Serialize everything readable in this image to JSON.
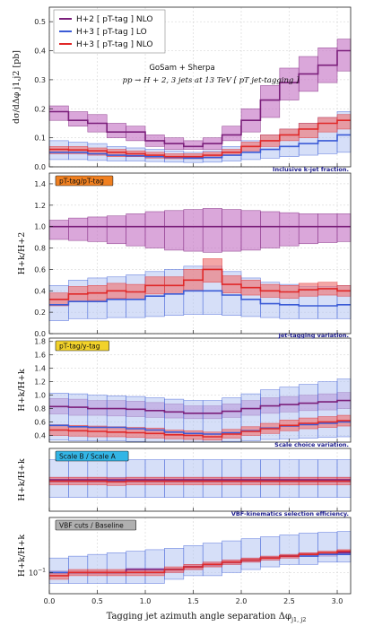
{
  "figure": {
    "xlabel": "Tagging jet azimuth angle separation  Δφ",
    "xlabel_sub": "j1, j2",
    "xticks": [
      "0.0",
      "0.5",
      "1.0",
      "1.5",
      "2.0",
      "2.5",
      "3.0"
    ],
    "legend": [
      "H+2 [ pT-tag ] NLO",
      "H+3 [ pT-tag ] LO",
      "H+3 [ pT-tag ] NLO"
    ],
    "legend_colors": [
      "#7b1f7b",
      "#3b5bd6",
      "#e02828"
    ],
    "band_colors": [
      "#c678c6",
      "#b5c5f2",
      "#ee7777"
    ],
    "annotation_line1": "GoSam + Sherpa",
    "annotation_line2": "pp → H + 2, 3 jets at 13 TeV  [ pT jet-tagging ]"
  },
  "chart_data": [
    {
      "type": "line",
      "ylabel": "dσ/dΔφ j1,j2 [pb]",
      "ylim": [
        0,
        0.55
      ],
      "yticks": [
        "0.0",
        "0.1",
        "0.2",
        "0.3",
        "0.4",
        "0.5"
      ],
      "x_edges": [
        0.0,
        0.2,
        0.4,
        0.6,
        0.8,
        1.0,
        1.2,
        1.4,
        1.6,
        1.8,
        2.0,
        2.2,
        2.4,
        2.6,
        2.8,
        3.0,
        3.14
      ],
      "series": [
        {
          "name": "H+2 [ pT-tag ] NLO",
          "values": [
            0.19,
            0.16,
            0.15,
            0.12,
            0.12,
            0.09,
            0.08,
            0.07,
            0.08,
            0.11,
            0.16,
            0.23,
            0.29,
            0.32,
            0.35,
            0.4
          ],
          "lo": [
            0.16,
            0.14,
            0.12,
            0.1,
            0.09,
            0.07,
            0.06,
            0.06,
            0.06,
            0.09,
            0.12,
            0.17,
            0.23,
            0.26,
            0.29,
            0.33
          ],
          "hi": [
            0.21,
            0.19,
            0.18,
            0.15,
            0.14,
            0.11,
            0.1,
            0.09,
            0.1,
            0.14,
            0.2,
            0.28,
            0.34,
            0.38,
            0.41,
            0.44
          ]
        },
        {
          "name": "H+3 [ pT-tag ] LO",
          "values": [
            0.05,
            0.05,
            0.045,
            0.04,
            0.038,
            0.035,
            0.032,
            0.03,
            0.032,
            0.04,
            0.05,
            0.06,
            0.07,
            0.08,
            0.09,
            0.11
          ],
          "lo": [
            0.025,
            0.025,
            0.022,
            0.02,
            0.02,
            0.018,
            0.016,
            0.015,
            0.016,
            0.02,
            0.025,
            0.03,
            0.035,
            0.04,
            0.045,
            0.05
          ],
          "hi": [
            0.09,
            0.085,
            0.08,
            0.07,
            0.065,
            0.06,
            0.055,
            0.05,
            0.055,
            0.07,
            0.09,
            0.11,
            0.13,
            0.15,
            0.17,
            0.19
          ]
        },
        {
          "name": "H+3 [ pT-tag ] NLO",
          "values": [
            0.06,
            0.058,
            0.055,
            0.05,
            0.045,
            0.04,
            0.035,
            0.035,
            0.04,
            0.05,
            0.07,
            0.09,
            0.11,
            0.13,
            0.15,
            0.16
          ],
          "lo": [
            0.045,
            0.045,
            0.04,
            0.035,
            0.035,
            0.03,
            0.028,
            0.028,
            0.03,
            0.04,
            0.055,
            0.07,
            0.09,
            0.1,
            0.12,
            0.13
          ],
          "hi": [
            0.07,
            0.07,
            0.065,
            0.06,
            0.055,
            0.05,
            0.045,
            0.045,
            0.05,
            0.06,
            0.085,
            0.11,
            0.13,
            0.15,
            0.17,
            0.18
          ]
        }
      ]
    },
    {
      "type": "line",
      "ylabel": "H+k/H+2",
      "ylim": [
        0,
        1.5
      ],
      "yticks": [
        "0.0",
        "0.2",
        "0.4",
        "0.6",
        "0.8",
        "1.0",
        "1.2",
        "1.4"
      ],
      "tag": "pT-tag/pT-tag",
      "tag_color": "#f08020",
      "note": "Inclusive k-jet fraction.",
      "x_edges": [
        0.0,
        0.2,
        0.4,
        0.6,
        0.8,
        1.0,
        1.2,
        1.4,
        1.6,
        1.8,
        2.0,
        2.2,
        2.4,
        2.6,
        2.8,
        3.0,
        3.14
      ],
      "series": [
        {
          "name": "H+2 [ pT-tag ] NLO",
          "values": [
            1,
            1,
            1,
            1,
            1,
            1,
            1,
            1,
            1,
            1,
            1,
            1,
            1,
            1,
            1,
            1
          ],
          "lo": [
            0.88,
            0.87,
            0.86,
            0.84,
            0.82,
            0.8,
            0.78,
            0.77,
            0.76,
            0.77,
            0.78,
            0.8,
            0.82,
            0.84,
            0.85,
            0.86
          ],
          "hi": [
            1.06,
            1.08,
            1.09,
            1.1,
            1.12,
            1.14,
            1.15,
            1.16,
            1.17,
            1.16,
            1.15,
            1.14,
            1.13,
            1.12,
            1.12,
            1.12
          ]
        },
        {
          "name": "H+3 [ pT-tag ] LO",
          "values": [
            0.27,
            0.3,
            0.3,
            0.32,
            0.32,
            0.35,
            0.37,
            0.4,
            0.4,
            0.36,
            0.32,
            0.28,
            0.27,
            0.26,
            0.26,
            0.27
          ],
          "lo": [
            0.12,
            0.14,
            0.14,
            0.15,
            0.15,
            0.16,
            0.17,
            0.18,
            0.18,
            0.17,
            0.16,
            0.15,
            0.14,
            0.14,
            0.14,
            0.14
          ],
          "hi": [
            0.45,
            0.5,
            0.52,
            0.53,
            0.55,
            0.58,
            0.6,
            0.63,
            0.63,
            0.58,
            0.52,
            0.48,
            0.46,
            0.44,
            0.44,
            0.45
          ]
        },
        {
          "name": "H+3 [ pT-tag ] NLO",
          "values": [
            0.32,
            0.37,
            0.38,
            0.4,
            0.39,
            0.45,
            0.45,
            0.5,
            0.6,
            0.46,
            0.43,
            0.4,
            0.39,
            0.41,
            0.42,
            0.4
          ],
          "lo": [
            0.26,
            0.3,
            0.31,
            0.33,
            0.32,
            0.37,
            0.37,
            0.4,
            0.48,
            0.38,
            0.36,
            0.34,
            0.33,
            0.35,
            0.36,
            0.35
          ],
          "hi": [
            0.38,
            0.44,
            0.45,
            0.47,
            0.46,
            0.53,
            0.53,
            0.6,
            0.7,
            0.54,
            0.5,
            0.46,
            0.45,
            0.47,
            0.48,
            0.45
          ]
        }
      ]
    },
    {
      "type": "line",
      "ylabel": "H+k/H+k",
      "ylim": [
        0.3,
        1.85
      ],
      "yticks": [
        "0.4",
        "0.6",
        "0.8",
        "1.0",
        "1.2",
        "1.4",
        "1.6",
        "1.8"
      ],
      "tag": "pT-tag/y-tag",
      "tag_color": "#f2d22a",
      "note": "Jet-tagging variation.",
      "x_edges": [
        0.0,
        0.2,
        0.4,
        0.6,
        0.8,
        1.0,
        1.2,
        1.4,
        1.6,
        1.8,
        2.0,
        2.2,
        2.4,
        2.6,
        2.8,
        3.0,
        3.14
      ],
      "series": [
        {
          "name": "H+2 [ pT-tag ] NLO",
          "values": [
            0.83,
            0.82,
            0.8,
            0.8,
            0.79,
            0.77,
            0.75,
            0.73,
            0.73,
            0.76,
            0.8,
            0.84,
            0.86,
            0.88,
            0.9,
            0.92
          ],
          "lo": [
            0.72,
            0.7,
            0.7,
            0.69,
            0.68,
            0.67,
            0.66,
            0.65,
            0.65,
            0.67,
            0.7,
            0.73,
            0.75,
            0.77,
            0.78,
            0.8
          ],
          "hi": [
            0.95,
            0.94,
            0.92,
            0.92,
            0.91,
            0.89,
            0.87,
            0.84,
            0.84,
            0.87,
            0.92,
            0.96,
            0.98,
            1.0,
            1.02,
            1.04
          ]
        },
        {
          "name": "H+3 [ pT-tag ] LO",
          "values": [
            0.55,
            0.53,
            0.52,
            0.52,
            0.5,
            0.48,
            0.45,
            0.43,
            0.42,
            0.44,
            0.47,
            0.51,
            0.54,
            0.56,
            0.58,
            0.6
          ],
          "lo": [
            0.33,
            0.32,
            0.32,
            0.32,
            0.31,
            0.3,
            0.3,
            0.3,
            0.3,
            0.31,
            0.32,
            0.34,
            0.35,
            0.36,
            0.37,
            0.38
          ],
          "hi": [
            1.03,
            1.02,
            1.0,
            0.99,
            0.98,
            0.96,
            0.94,
            0.92,
            0.92,
            0.96,
            1.02,
            1.08,
            1.12,
            1.16,
            1.2,
            1.24
          ]
        },
        {
          "name": "H+3 [ pT-tag ] NLO",
          "values": [
            0.48,
            0.47,
            0.46,
            0.45,
            0.44,
            0.43,
            0.41,
            0.4,
            0.38,
            0.42,
            0.46,
            0.5,
            0.55,
            0.58,
            0.6,
            0.62
          ],
          "lo": [
            0.4,
            0.39,
            0.38,
            0.38,
            0.37,
            0.36,
            0.35,
            0.34,
            0.33,
            0.36,
            0.4,
            0.43,
            0.47,
            0.5,
            0.52,
            0.54
          ],
          "hi": [
            0.56,
            0.55,
            0.54,
            0.53,
            0.52,
            0.51,
            0.48,
            0.47,
            0.45,
            0.49,
            0.53,
            0.58,
            0.63,
            0.66,
            0.68,
            0.7
          ]
        }
      ]
    },
    {
      "type": "line",
      "ylabel": "H+k/H+k",
      "ylim": [
        0.5,
        1.5
      ],
      "yticks": [],
      "tag": "Scale B / Scale A",
      "tag_color": "#33b5e5",
      "note": "Scale choice variation.",
      "x_edges": [
        0.0,
        0.2,
        0.4,
        0.6,
        0.8,
        1.0,
        1.2,
        1.4,
        1.6,
        1.8,
        2.0,
        2.2,
        2.4,
        2.6,
        2.8,
        3.0,
        3.14
      ],
      "series": [
        {
          "name": "H+2 [ pT-tag ] NLO",
          "values": [
            1,
            1,
            1,
            1,
            1,
            1,
            1,
            1,
            1,
            1,
            1,
            1,
            1,
            1,
            1,
            1
          ],
          "lo": [
            0.96,
            0.96,
            0.96,
            0.96,
            0.96,
            0.96,
            0.96,
            0.96,
            0.96,
            0.96,
            0.96,
            0.96,
            0.96,
            0.96,
            0.96,
            0.96
          ],
          "hi": [
            1.04,
            1.04,
            1.04,
            1.04,
            1.04,
            1.04,
            1.04,
            1.04,
            1.04,
            1.04,
            1.04,
            1.04,
            1.04,
            1.04,
            1.04,
            1.04
          ]
        },
        {
          "name": "H+3 [ pT-tag ] LO",
          "values": [
            0.98,
            0.98,
            0.98,
            0.98,
            0.98,
            0.98,
            0.98,
            0.98,
            0.98,
            0.98,
            0.98,
            0.98,
            0.98,
            0.98,
            0.98,
            0.98
          ],
          "lo": [
            0.72,
            0.72,
            0.72,
            0.72,
            0.72,
            0.72,
            0.72,
            0.72,
            0.72,
            0.72,
            0.72,
            0.72,
            0.72,
            0.72,
            0.72,
            0.72
          ],
          "hi": [
            1.32,
            1.32,
            1.32,
            1.32,
            1.32,
            1.32,
            1.32,
            1.32,
            1.32,
            1.32,
            1.32,
            1.32,
            1.32,
            1.32,
            1.32,
            1.32
          ]
        },
        {
          "name": "H+3 [ pT-tag ] NLO",
          "values": [
            0.98,
            0.98,
            0.98,
            0.97,
            0.98,
            0.98,
            0.98,
            0.98,
            0.98,
            0.98,
            0.98,
            0.98,
            0.98,
            0.98,
            0.98,
            0.98
          ],
          "lo": [
            0.92,
            0.92,
            0.92,
            0.91,
            0.92,
            0.92,
            0.92,
            0.92,
            0.92,
            0.92,
            0.92,
            0.92,
            0.92,
            0.92,
            0.92,
            0.92
          ],
          "hi": [
            1.04,
            1.04,
            1.04,
            1.03,
            1.04,
            1.04,
            1.04,
            1.04,
            1.04,
            1.04,
            1.04,
            1.04,
            1.04,
            1.04,
            1.04,
            1.04
          ]
        }
      ]
    },
    {
      "type": "line",
      "ylabel": "H+k/H+k",
      "yscale": "log",
      "ylim": [
        0.05,
        0.6
      ],
      "yticks": [
        "10^-1"
      ],
      "tag": "VBF cuts / Baseline",
      "tag_color": "#b0b0b0",
      "note": "VBF-kinematics selection efficiency.",
      "x_edges": [
        0.0,
        0.2,
        0.4,
        0.6,
        0.8,
        1.0,
        1.2,
        1.4,
        1.6,
        1.8,
        2.0,
        2.2,
        2.4,
        2.6,
        2.8,
        3.0,
        3.14
      ],
      "series": [
        {
          "name": "H+2 [ pT-tag ] NLO",
          "values": [
            0.1,
            0.1,
            0.1,
            0.1,
            0.11,
            0.11,
            0.11,
            0.12,
            0.13,
            0.14,
            0.15,
            0.16,
            0.17,
            0.18,
            0.18,
            0.19
          ],
          "lo": [
            0.095,
            0.095,
            0.095,
            0.095,
            0.1,
            0.1,
            0.1,
            0.11,
            0.12,
            0.13,
            0.14,
            0.15,
            0.16,
            0.17,
            0.17,
            0.18
          ],
          "hi": [
            0.105,
            0.105,
            0.105,
            0.105,
            0.115,
            0.115,
            0.115,
            0.13,
            0.14,
            0.15,
            0.16,
            0.17,
            0.18,
            0.19,
            0.19,
            0.2
          ]
        },
        {
          "name": "H+3 [ pT-tag ] LO",
          "values": [
            0.1,
            0.1,
            0.1,
            0.1,
            0.1,
            0.1,
            0.11,
            0.12,
            0.13,
            0.14,
            0.15,
            0.16,
            0.17,
            0.17,
            0.18,
            0.18
          ],
          "lo": [
            0.07,
            0.07,
            0.07,
            0.07,
            0.07,
            0.07,
            0.08,
            0.09,
            0.09,
            0.1,
            0.11,
            0.12,
            0.13,
            0.13,
            0.14,
            0.14
          ],
          "hi": [
            0.16,
            0.17,
            0.18,
            0.19,
            0.2,
            0.21,
            0.22,
            0.24,
            0.26,
            0.28,
            0.3,
            0.32,
            0.34,
            0.36,
            0.37,
            0.38
          ]
        },
        {
          "name": "H+3 [ pT-tag ] NLO",
          "values": [
            0.09,
            0.1,
            0.1,
            0.1,
            0.1,
            0.1,
            0.11,
            0.12,
            0.13,
            0.14,
            0.15,
            0.16,
            0.17,
            0.18,
            0.19,
            0.2
          ],
          "lo": [
            0.08,
            0.09,
            0.09,
            0.09,
            0.09,
            0.09,
            0.1,
            0.11,
            0.12,
            0.13,
            0.14,
            0.15,
            0.16,
            0.17,
            0.18,
            0.19
          ],
          "hi": [
            0.1,
            0.11,
            0.11,
            0.11,
            0.11,
            0.11,
            0.12,
            0.13,
            0.14,
            0.15,
            0.16,
            0.17,
            0.18,
            0.19,
            0.2,
            0.21
          ]
        }
      ]
    }
  ]
}
